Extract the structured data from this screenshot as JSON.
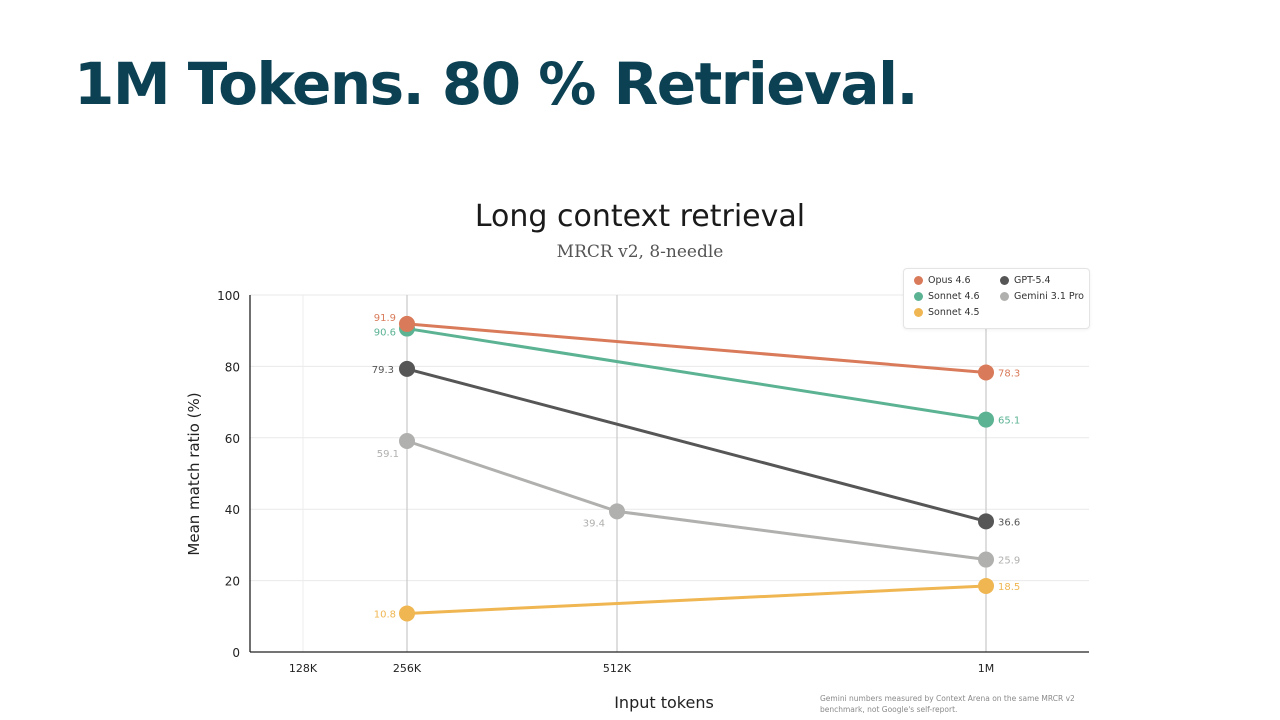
{
  "slide": {
    "title": "1M Tokens. 80 % Retrieval."
  },
  "footnote": "Gemini numbers measured by Context Arena on the same MRCR v2 benchmark, not Google's self-report.",
  "chart_data": {
    "type": "line",
    "title": "Long context retrieval",
    "subtitle": "MRCR v2, 8-needle",
    "xlabel": "Input tokens",
    "ylabel": "Mean match ratio (%)",
    "x_ticks": [
      {
        "label": "128K",
        "tokens": 128
      },
      {
        "label": "256K",
        "tokens": 256
      },
      {
        "label": "512K",
        "tokens": 512
      },
      {
        "label": "1M",
        "tokens": 1000
      }
    ],
    "ylim": [
      0,
      100
    ],
    "y_ticks": [
      0,
      20,
      40,
      60,
      80,
      100
    ],
    "grid": true,
    "legend_position": "top-right",
    "series": [
      {
        "name": "Opus 4.6",
        "color": "#d97b5a",
        "points": [
          {
            "x": 256,
            "y": 91.9,
            "label": "91.9"
          },
          {
            "x": 1000,
            "y": 78.3,
            "label": "78.3"
          }
        ]
      },
      {
        "name": "Sonnet 4.6",
        "color": "#5bb393",
        "points": [
          {
            "x": 256,
            "y": 90.6,
            "label": "90.6"
          },
          {
            "x": 1000,
            "y": 65.1,
            "label": "65.1"
          }
        ]
      },
      {
        "name": "GPT-5.4",
        "color": "#565656",
        "points": [
          {
            "x": 256,
            "y": 79.3,
            "label": "79.3"
          },
          {
            "x": 1000,
            "y": 36.6,
            "label": "36.6"
          }
        ]
      },
      {
        "name": "Gemini 3.1 Pro",
        "color": "#b0b0ae",
        "points": [
          {
            "x": 256,
            "y": 59.1,
            "label": "59.1"
          },
          {
            "x": 512,
            "y": 39.4,
            "label": "39.4"
          },
          {
            "x": 1000,
            "y": 25.9,
            "label": "25.9"
          }
        ]
      },
      {
        "name": "Sonnet 4.5",
        "color": "#efb652",
        "points": [
          {
            "x": 256,
            "y": 10.8,
            "label": "10.8"
          },
          {
            "x": 1000,
            "y": 18.5,
            "label": "18.5"
          }
        ]
      }
    ]
  }
}
